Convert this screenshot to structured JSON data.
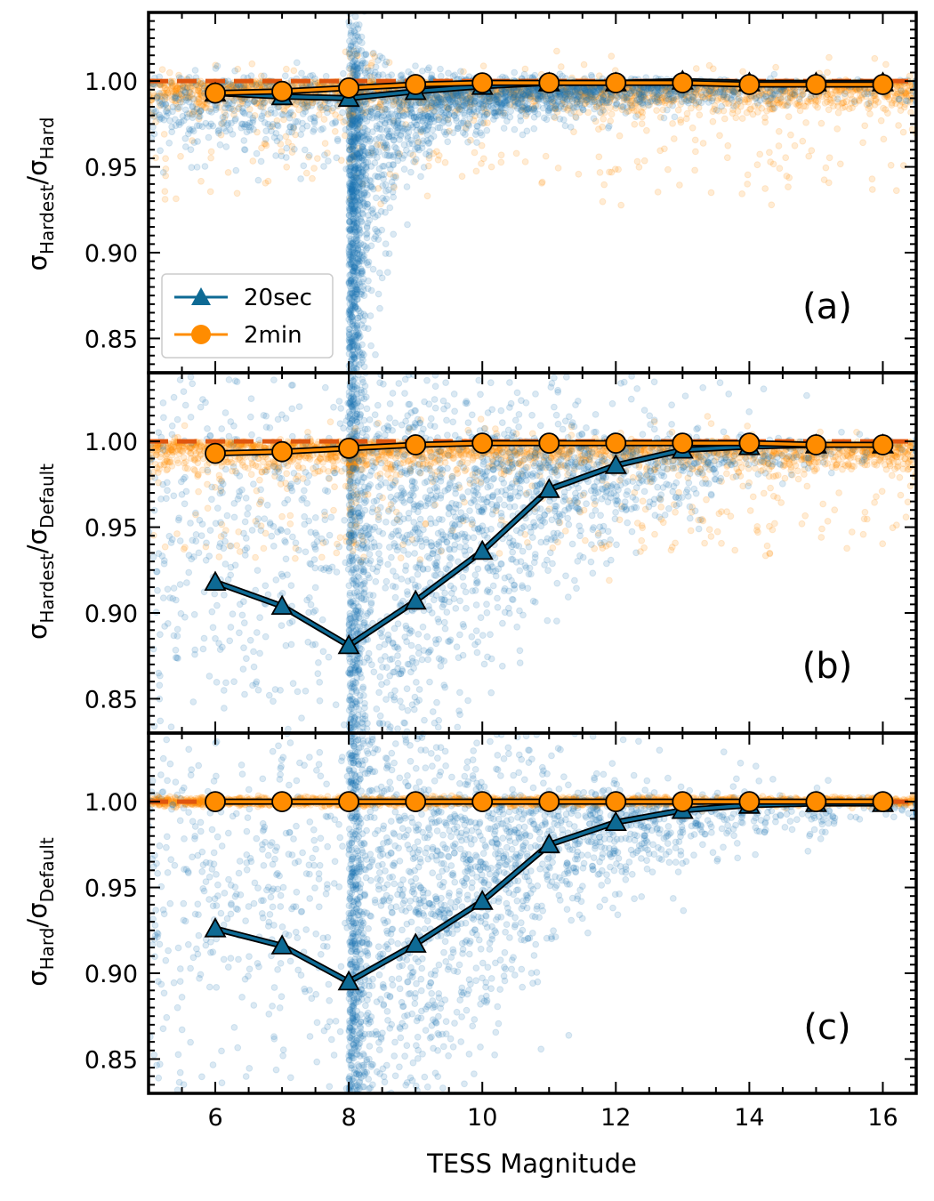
{
  "colors": {
    "s20": "#0e6a94",
    "s20_scatter": "#1f77b4",
    "s2min": "#ff8c00",
    "ref_line": "#e0560f",
    "axis": "#000000"
  },
  "chart_data": {
    "type": "scatter",
    "xlabel": "TESS Magnitude",
    "xlim": [
      5,
      16.5
    ],
    "ylim": [
      0.83,
      1.04
    ],
    "x_ticks": [
      6,
      8,
      10,
      12,
      14,
      16
    ],
    "y_ticks": [
      "0.85",
      "0.90",
      "0.95",
      "1.00"
    ],
    "legend": {
      "location": "lower-left of panel (a)",
      "entries": [
        {
          "label": "20sec",
          "marker": "triangle"
        },
        {
          "label": "2min",
          "marker": "circle"
        }
      ]
    },
    "panels": [
      {
        "tag": "(a)",
        "ylabel_main": "σ",
        "ylabel_sub1": "Hardest",
        "ylabel_sub2": "Hard",
        "x": [
          6,
          7,
          8,
          9,
          10,
          11,
          12,
          13,
          14,
          15,
          16
        ],
        "series": [
          {
            "name": "20sec",
            "values": [
              0.993,
              0.991,
              0.99,
              0.994,
              0.997,
              0.999,
              0.999,
              1.0,
              0.999,
              0.999,
              0.999
            ]
          },
          {
            "name": "2min",
            "values": [
              0.993,
              0.994,
              0.996,
              0.998,
              0.999,
              0.999,
              0.999,
              0.999,
              0.998,
              0.998,
              0.998
            ]
          }
        ],
        "reference_line": 1.0
      },
      {
        "tag": "(b)",
        "ylabel_main": "σ",
        "ylabel_sub1": "Hardest",
        "ylabel_sub2": "Default",
        "x": [
          6,
          7,
          8,
          9,
          10,
          11,
          12,
          13,
          14,
          15,
          16
        ],
        "series": [
          {
            "name": "20sec",
            "values": [
              0.918,
              0.904,
              0.881,
              0.907,
              0.936,
              0.972,
              0.986,
              0.995,
              0.997,
              0.998,
              0.998
            ]
          },
          {
            "name": "2min",
            "values": [
              0.993,
              0.994,
              0.996,
              0.998,
              0.999,
              0.999,
              0.999,
              0.999,
              0.999,
              0.998,
              0.998
            ]
          }
        ],
        "reference_line": 1.0
      },
      {
        "tag": "(c)",
        "ylabel_main": "σ",
        "ylabel_sub1": "Hard",
        "ylabel_sub2": "Default",
        "x": [
          6,
          7,
          8,
          9,
          10,
          11,
          12,
          13,
          14,
          15,
          16
        ],
        "series": [
          {
            "name": "20sec",
            "values": [
              0.926,
              0.916,
              0.895,
              0.917,
              0.942,
              0.975,
              0.988,
              0.995,
              0.998,
              0.999,
              0.999
            ]
          },
          {
            "name": "2min",
            "values": [
              1.0,
              1.0,
              1.0,
              1.0,
              1.0,
              1.0,
              1.0,
              1.0,
              1.0,
              1.0,
              1.0
            ]
          }
        ],
        "reference_line": 1.0
      }
    ]
  }
}
